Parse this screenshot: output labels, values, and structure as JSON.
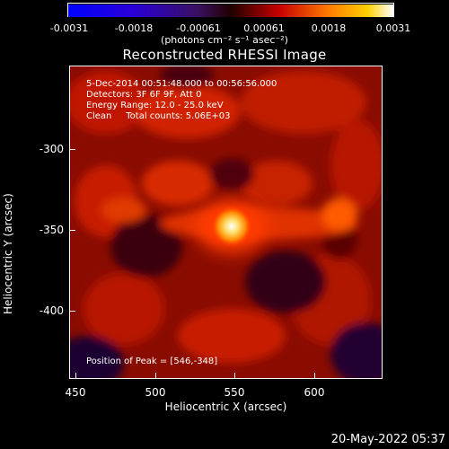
{
  "colorbar": {
    "tick_labels": [
      "-0.0031",
      "-0.0018",
      "-0.00061",
      "0.00061",
      "0.0018",
      "0.0031"
    ],
    "units": "(photons cm⁻² s⁻¹ asec⁻²)",
    "range": [
      -0.0031,
      0.0031
    ]
  },
  "title": "Reconstructed RHESSI Image",
  "info": {
    "line1": "5-Dec-2014 00:51:48.000 to 00:56:56.000",
    "line2": "Detectors: 3F 6F 9F, Att 0",
    "line3": "Energy Range: 12.0 - 25.0 keV",
    "line4": "Clean     Total counts: 5.06E+03",
    "peak": "Position of Peak = [546,-348]"
  },
  "axes": {
    "xlabel": "Heliocentric X (arcsec)",
    "ylabel": "Heliocentric Y (arcsec)",
    "xticks": [
      "450",
      "500",
      "550",
      "600"
    ],
    "yticks": [
      "-300",
      "-350",
      "-400"
    ],
    "xlim": [
      441,
      638
    ],
    "ylim": [
      -445,
      -255
    ]
  },
  "footer": {
    "timestamp": "20-May-2022 05:37"
  }
}
